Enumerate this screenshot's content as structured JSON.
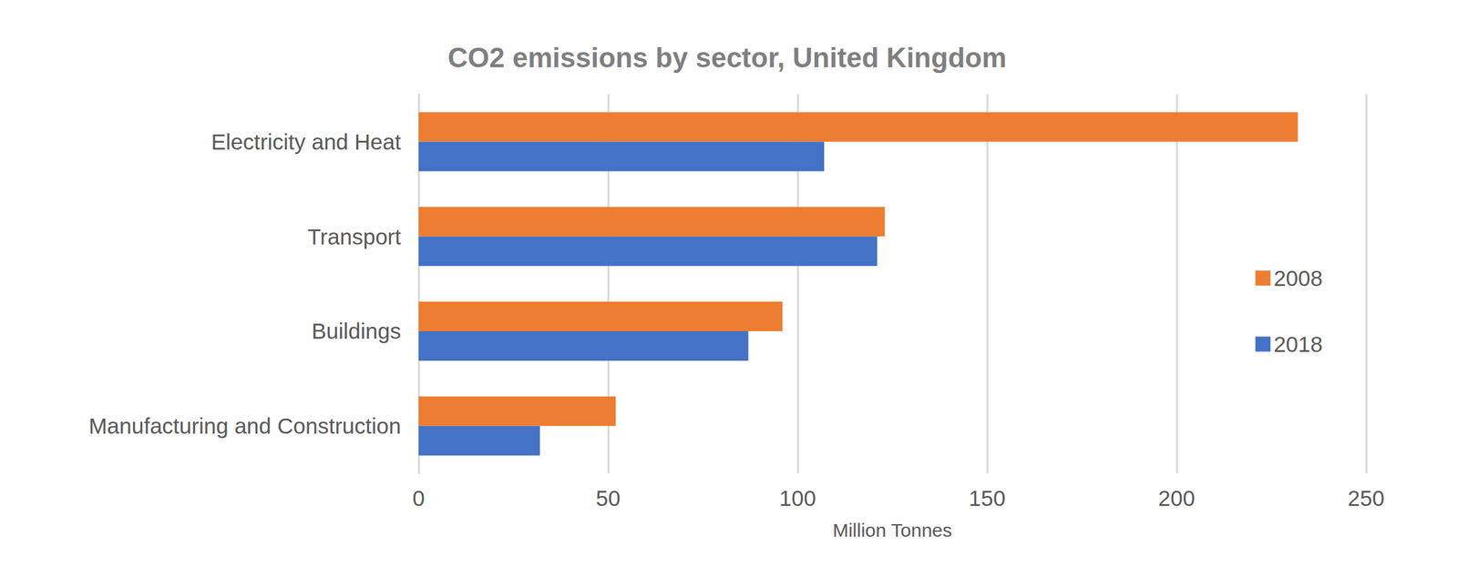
{
  "chart_data": {
    "type": "bar",
    "orientation": "horizontal",
    "title": "CO2 emissions by sector, United Kingdom",
    "x_label": "Million Tonnes",
    "categories": [
      "Electricity and Heat",
      "Transport",
      "Buildings",
      "Manufacturing and Construction"
    ],
    "series": [
      {
        "name": "2008",
        "color": "#ED7D31",
        "values": [
          232,
          123,
          96,
          52
        ]
      },
      {
        "name": "2018",
        "color": "#4472C4",
        "values": [
          107,
          121,
          87,
          32
        ]
      }
    ],
    "xlim": [
      0,
      250
    ],
    "xticks": [
      0,
      50,
      100,
      150,
      200,
      250
    ],
    "grid": true,
    "legend": "right"
  }
}
